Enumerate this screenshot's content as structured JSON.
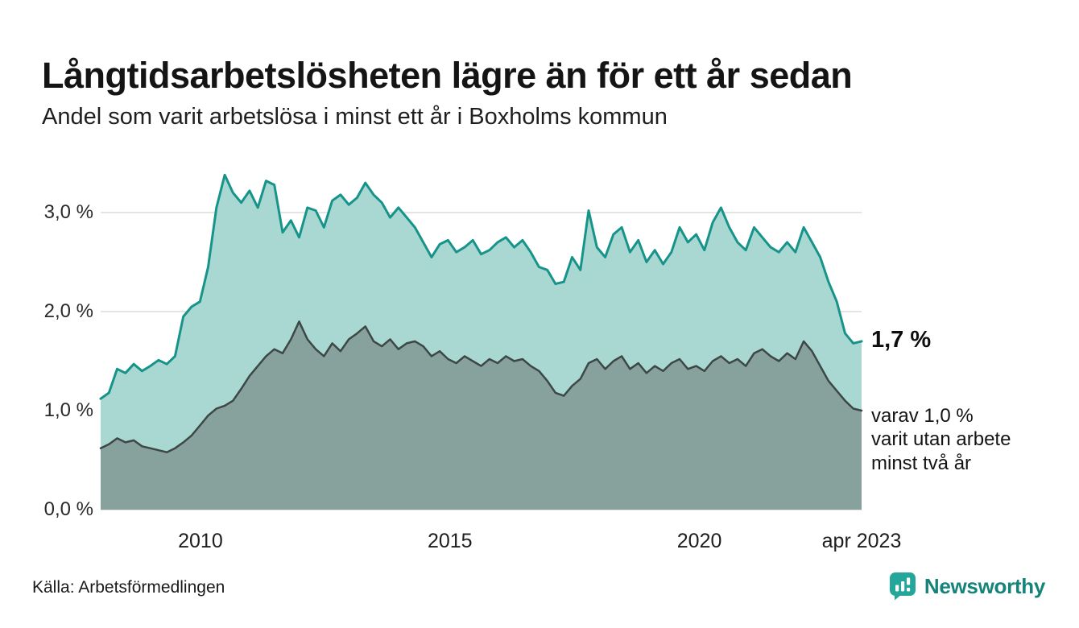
{
  "title": "Långtidsarbetslösheten lägre än för ett år sedan",
  "subtitle": "Andel som varit arbetslösa i minst ett år i Boxholms kommun",
  "source": "Källa: Arbetsförmedlingen",
  "logo": {
    "text": "Newsworthy",
    "brand_color": "#25a69a",
    "text_color": "#16837a"
  },
  "annotations": {
    "latest_value": "1,7 %",
    "secondary": "varav 1,0 %\nvarit utan arbete\nminst två år"
  },
  "chart_data": {
    "type": "area",
    "title": "Långtidsarbetslösheten lägre än för ett år sedan",
    "subtitle": "Andel som varit arbetslösa i minst ett år i Boxholms kommun",
    "x_start": 2008.0,
    "x_end": 2023.25,
    "ylim": [
      0,
      3.6
    ],
    "grid": true,
    "grid_color": "#dcdcdc",
    "legend_position": "none",
    "yticks": [
      0,
      1,
      2,
      3
    ],
    "ytick_labels": [
      "0,0 %",
      "1,0 %",
      "2,0 %",
      "3,0 %"
    ],
    "xticks": [
      2010,
      2015,
      2020,
      2023.25
    ],
    "xtick_labels": [
      "2010",
      "2015",
      "2020",
      "apr 2023"
    ],
    "series": [
      {
        "id": "minst-ett-ar",
        "name": "Arbetslösa minst ett år",
        "fill": "#a9d8d2",
        "stroke": "#17948a",
        "latest": 1.7,
        "values": [
          1.12,
          1.18,
          1.42,
          1.38,
          1.47,
          1.4,
          1.45,
          1.51,
          1.47,
          1.55,
          1.95,
          2.05,
          2.1,
          2.45,
          3.05,
          3.38,
          3.2,
          3.1,
          3.22,
          3.05,
          3.32,
          3.28,
          2.8,
          2.92,
          2.75,
          3.05,
          3.02,
          2.85,
          3.12,
          3.18,
          3.08,
          3.15,
          3.3,
          3.18,
          3.1,
          2.95,
          3.05,
          2.95,
          2.85,
          2.7,
          2.55,
          2.68,
          2.72,
          2.6,
          2.65,
          2.72,
          2.58,
          2.62,
          2.7,
          2.75,
          2.65,
          2.72,
          2.6,
          2.45,
          2.42,
          2.28,
          2.3,
          2.55,
          2.42,
          3.02,
          2.65,
          2.55,
          2.78,
          2.85,
          2.6,
          2.72,
          2.5,
          2.62,
          2.48,
          2.6,
          2.85,
          2.7,
          2.78,
          2.62,
          2.9,
          3.05,
          2.85,
          2.7,
          2.62,
          2.85,
          2.75,
          2.65,
          2.6,
          2.7,
          2.6,
          2.85,
          2.7,
          2.55,
          2.3,
          2.1,
          1.78,
          1.68,
          1.7
        ]
      },
      {
        "id": "minst-tva-ar",
        "name": "Utan arbete minst två år",
        "fill": "#87a29d",
        "stroke": "#3d4746",
        "latest": 1.0,
        "values": [
          0.62,
          0.66,
          0.72,
          0.68,
          0.7,
          0.64,
          0.62,
          0.6,
          0.58,
          0.62,
          0.68,
          0.75,
          0.85,
          0.95,
          1.02,
          1.05,
          1.1,
          1.22,
          1.35,
          1.45,
          1.55,
          1.62,
          1.58,
          1.72,
          1.9,
          1.72,
          1.62,
          1.55,
          1.68,
          1.6,
          1.72,
          1.78,
          1.85,
          1.7,
          1.65,
          1.72,
          1.62,
          1.68,
          1.7,
          1.65,
          1.55,
          1.6,
          1.52,
          1.48,
          1.55,
          1.5,
          1.45,
          1.52,
          1.48,
          1.55,
          1.5,
          1.52,
          1.45,
          1.4,
          1.3,
          1.18,
          1.15,
          1.25,
          1.32,
          1.48,
          1.52,
          1.42,
          1.5,
          1.55,
          1.42,
          1.48,
          1.38,
          1.45,
          1.4,
          1.48,
          1.52,
          1.42,
          1.45,
          1.4,
          1.5,
          1.55,
          1.48,
          1.52,
          1.45,
          1.58,
          1.62,
          1.55,
          1.5,
          1.58,
          1.52,
          1.7,
          1.6,
          1.45,
          1.3,
          1.2,
          1.1,
          1.02,
          1.0
        ]
      }
    ]
  }
}
